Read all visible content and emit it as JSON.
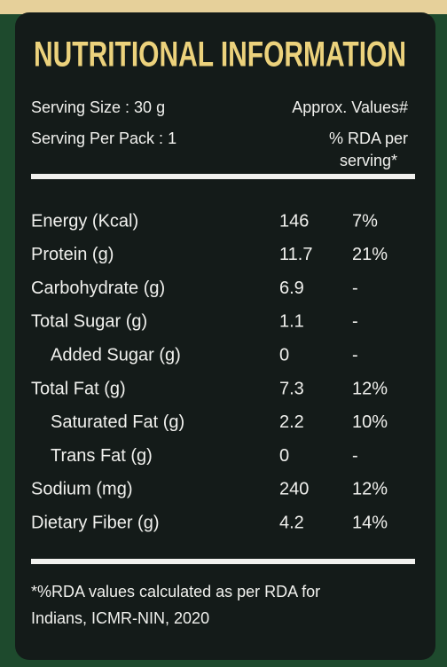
{
  "title": "NUTRITIONAL INFORMATION",
  "serving": {
    "size": "Serving Size : 30 g",
    "per_pack": "Serving Per Pack : 1"
  },
  "header": {
    "approx": "Approx. Values#",
    "rda": "% RDA per",
    "rda_2": "serving*"
  },
  "table": {
    "rows": [
      [
        "Energy (Kcal)",
        "146",
        "7%"
      ],
      [
        "Protein (g)",
        "11.7",
        "21%"
      ],
      [
        "Carbohydrate (g)",
        "6.9",
        "-"
      ],
      [
        "Total Sugar (g)",
        "1.1",
        "-"
      ],
      [
        "Added Sugar (g)",
        "0",
        "-"
      ],
      [
        "Total Fat (g)",
        "7.3",
        "12%"
      ],
      [
        "Saturated Fat (g)",
        "2.2",
        "10%"
      ],
      [
        "Trans Fat (g)",
        "0",
        "-"
      ],
      [
        "Sodium (mg)",
        "240",
        "12%"
      ],
      [
        "Dietary Fiber (g)",
        "4.2",
        "14%"
      ]
    ]
  },
  "footnote": [
    "*%RDA values calculated as per RDA for",
    "Indians, ICMR-NIN, 2020"
  ]
}
